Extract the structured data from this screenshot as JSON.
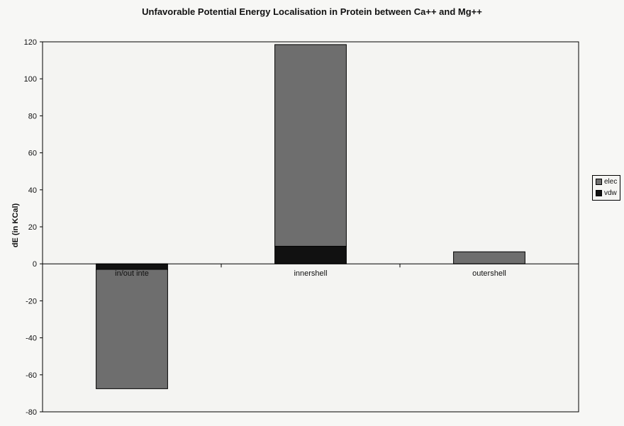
{
  "chart_data": {
    "type": "bar",
    "stacked": true,
    "title": "Unfavorable Potential Energy Localisation in Protein between Ca++ and Mg++",
    "xlabel": "",
    "ylabel": "dE (in KCal)",
    "ylim": [
      -80,
      120
    ],
    "yticks": [
      -80,
      -60,
      -40,
      -20,
      0,
      20,
      40,
      60,
      80,
      100,
      120
    ],
    "categories": [
      "in/out inte",
      "innershell",
      "outershell"
    ],
    "series": [
      {
        "name": "vdw",
        "color": "#111111",
        "values": [
          -3,
          9.5,
          0
        ]
      },
      {
        "name": "elec",
        "color": "#6e6e6e",
        "values": [
          -64.5,
          109,
          6.5
        ]
      }
    ],
    "grid": false,
    "legend": "right"
  }
}
